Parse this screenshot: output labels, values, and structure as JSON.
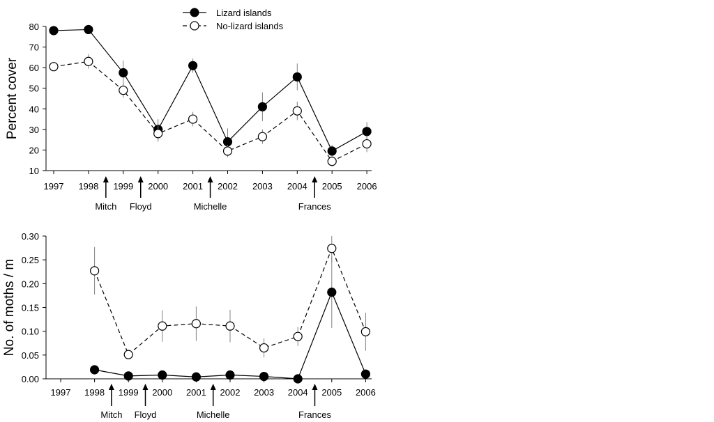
{
  "legend": [
    {
      "label": "Lizard islands",
      "marker": "filled",
      "line": "solid"
    },
    {
      "label": "No-lizard islands",
      "marker": "open",
      "line": "dashed"
    }
  ],
  "colors": {
    "ink": "#000000",
    "open_fill": "#ffffff",
    "errorbar": "#808080"
  },
  "chart_data": [
    {
      "type": "line",
      "ylabel": "Percent cover",
      "xlabel": "",
      "x": [
        1997,
        1998,
        1999,
        2000,
        2001,
        2002,
        2003,
        2004,
        2005,
        2006
      ],
      "x_tick_labels": [
        "1997",
        "1998",
        "1999",
        "2000",
        "2001",
        "2002",
        "2003",
        "2004",
        "2005",
        "2006"
      ],
      "ylim": [
        10,
        80
      ],
      "y_ticks": [
        10,
        20,
        30,
        40,
        50,
        60,
        70,
        80
      ],
      "y_tick_labels": [
        "10",
        "20",
        "30",
        "40",
        "50",
        "60",
        "70",
        "80"
      ],
      "grid": false,
      "series": [
        {
          "name": "Lizard islands",
          "values": [
            78,
            78.5,
            57.5,
            30,
            61,
            24,
            41,
            55.5,
            19.5,
            29
          ],
          "error": [
            1,
            1,
            6,
            5,
            3.5,
            6.5,
            7,
            6.5,
            3,
            4.5
          ]
        },
        {
          "name": "No-lizard islands",
          "values": [
            60.5,
            63,
            49,
            28,
            35,
            19.5,
            26.5,
            39,
            14.5,
            23
          ],
          "error": [
            1,
            3.5,
            3.5,
            4,
            3.5,
            3,
            3.5,
            4.5,
            2.5,
            4
          ]
        }
      ],
      "annotations": [
        {
          "label": "Mitch",
          "x": 1998.5
        },
        {
          "label": "Floyd",
          "x": 1999.5
        },
        {
          "label": "Michelle",
          "x": 2001.5
        },
        {
          "label": "Frances",
          "x": 2004.5
        }
      ]
    },
    {
      "type": "line",
      "ylabel": "No. of moths / m",
      "xlabel": "",
      "x": [
        1997,
        1998,
        1999,
        2000,
        2001,
        2002,
        2003,
        2004,
        2005,
        2006
      ],
      "x_tick_labels": [
        "1997",
        "1998",
        "1999",
        "2000",
        "2001",
        "2002",
        "2003",
        "2004",
        "2005",
        "2006"
      ],
      "ylim": [
        0,
        0.3
      ],
      "y_ticks": [
        0,
        0.05,
        0.1,
        0.15,
        0.2,
        0.25,
        0.3
      ],
      "y_tick_labels": [
        "0.00",
        "0.05",
        "0.10",
        "0.15",
        "0.20",
        "0.25",
        "0.30"
      ],
      "grid": false,
      "series": [
        {
          "name": "Lizard islands",
          "x": [
            1998,
            1999,
            2000,
            2001,
            2002,
            2003,
            2004,
            2005,
            2006
          ],
          "values": [
            0.019,
            0.006,
            0.008,
            0.004,
            0.008,
            0.005,
            0.0,
            0.182,
            0.01
          ],
          "error": [
            0.004,
            0.003,
            0.003,
            0.002,
            0.003,
            0.003,
            0.0,
            0.075,
            0.004
          ]
        },
        {
          "name": "No-lizard islands",
          "x": [
            1998,
            1999,
            2000,
            2001,
            2002,
            2003,
            2004,
            2005,
            2006
          ],
          "values": [
            0.227,
            0.051,
            0.111,
            0.116,
            0.111,
            0.065,
            0.089,
            0.274,
            0.099
          ],
          "error": [
            0.05,
            0.008,
            0.033,
            0.036,
            0.034,
            0.02,
            0.02,
            0.028,
            0.04
          ]
        }
      ],
      "annotations": [
        {
          "label": "Mitch",
          "x": 1998.5
        },
        {
          "label": "Floyd",
          "x": 1999.5
        },
        {
          "label": "Michelle",
          "x": 2001.5
        },
        {
          "label": "Frances",
          "x": 2004.5
        }
      ]
    }
  ]
}
